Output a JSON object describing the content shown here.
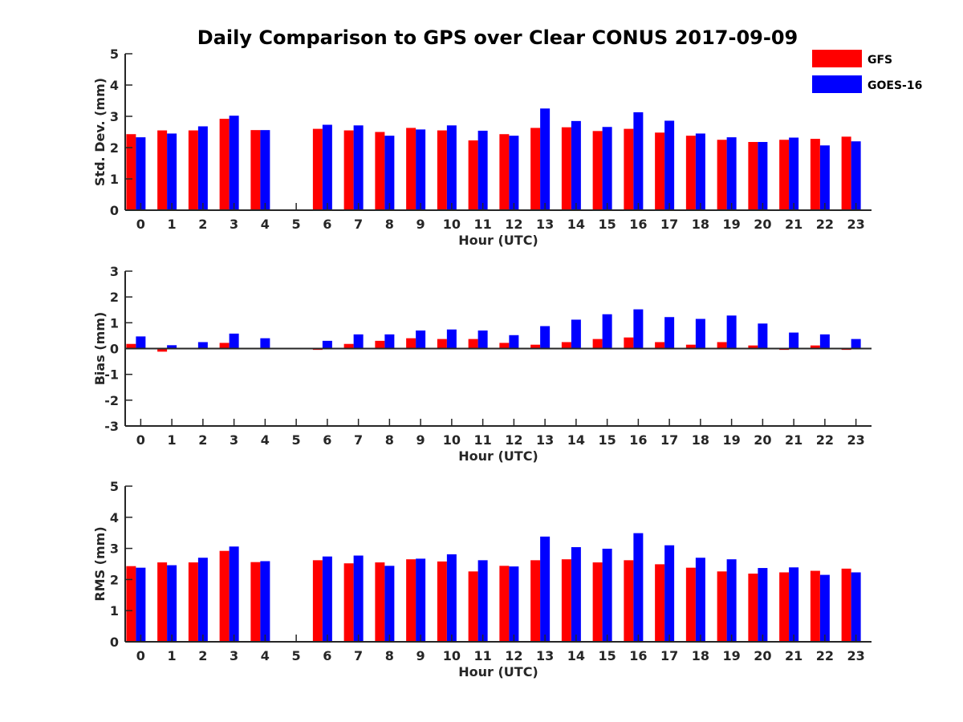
{
  "chart_data": {
    "type": "bar",
    "title": "Daily Comparison to GPS over Clear CONUS 2017-09-09",
    "legend": {
      "placement": "top-right",
      "entries": [
        {
          "name": "GFS",
          "color": "#ff0000"
        },
        {
          "name": "GOES-16",
          "color": "#0000ff"
        }
      ]
    },
    "categories": [
      "0",
      "1",
      "2",
      "3",
      "4",
      "5",
      "6",
      "7",
      "8",
      "9",
      "10",
      "11",
      "12",
      "13",
      "14",
      "15",
      "16",
      "17",
      "18",
      "19",
      "20",
      "21",
      "22",
      "23"
    ],
    "panels": [
      {
        "id": "std",
        "ylabel": "Std. Dev. (mm)",
        "xlabel": "Hour (UTC)",
        "ylim": [
          0,
          5
        ],
        "yticks": [
          "0",
          "1",
          "2",
          "3",
          "4",
          "5"
        ],
        "series": [
          {
            "name": "GFS",
            "color": "#ff0000",
            "values": [
              2.43,
              2.55,
              2.55,
              2.92,
              2.56,
              null,
              2.6,
              2.55,
              2.5,
              2.63,
              2.55,
              2.23,
              2.43,
              2.63,
              2.65,
              2.53,
              2.6,
              2.48,
              2.38,
              2.25,
              2.18,
              2.25,
              2.28,
              2.35
            ]
          },
          {
            "name": "GOES-16",
            "color": "#0000ff",
            "values": [
              2.33,
              2.45,
              2.68,
              3.02,
              2.56,
              null,
              2.73,
              2.71,
              2.38,
              2.58,
              2.71,
              2.54,
              2.38,
              3.25,
              2.85,
              2.66,
              3.13,
              2.86,
              2.45,
              2.33,
              2.18,
              2.32,
              2.07,
              2.2
            ]
          }
        ]
      },
      {
        "id": "bias",
        "ylabel": "Bias (mm)",
        "xlabel": "Hour (UTC)",
        "ylim": [
          -3,
          3
        ],
        "yticks": [
          "-3",
          "-2",
          "-1",
          "0",
          "1",
          "2",
          "3"
        ],
        "series": [
          {
            "name": "GFS",
            "color": "#ff0000",
            "values": [
              0.18,
              -0.12,
              0.02,
              0.22,
              0.03,
              null,
              -0.05,
              0.18,
              0.3,
              0.4,
              0.37,
              0.37,
              0.22,
              0.15,
              0.25,
              0.37,
              0.43,
              0.25,
              0.15,
              0.25,
              0.12,
              -0.05,
              0.12,
              -0.05
            ]
          },
          {
            "name": "GOES-16",
            "color": "#0000ff",
            "values": [
              0.47,
              0.13,
              0.25,
              0.58,
              0.4,
              null,
              0.3,
              0.55,
              0.55,
              0.7,
              0.74,
              0.7,
              0.52,
              0.87,
              1.12,
              1.33,
              1.52,
              1.22,
              1.15,
              1.28,
              0.97,
              0.62,
              0.55,
              0.37
            ]
          }
        ]
      },
      {
        "id": "rms",
        "ylabel": "RMS (mm)",
        "xlabel": "Hour (UTC)",
        "ylim": [
          0,
          5
        ],
        "yticks": [
          "0",
          "1",
          "2",
          "3",
          "4",
          "5"
        ],
        "series": [
          {
            "name": "GFS",
            "color": "#ff0000",
            "values": [
              2.43,
              2.55,
              2.55,
              2.92,
              2.56,
              null,
              2.62,
              2.52,
              2.55,
              2.65,
              2.58,
              2.26,
              2.44,
              2.62,
              2.65,
              2.55,
              2.62,
              2.49,
              2.38,
              2.26,
              2.19,
              2.23,
              2.28,
              2.35
            ]
          },
          {
            "name": "GOES-16",
            "color": "#0000ff",
            "values": [
              2.38,
              2.46,
              2.7,
              3.06,
              2.59,
              null,
              2.74,
              2.77,
              2.44,
              2.67,
              2.81,
              2.62,
              2.42,
              3.38,
              3.04,
              2.99,
              3.49,
              3.1,
              2.7,
              2.65,
              2.37,
              2.39,
              2.15,
              2.23
            ]
          }
        ]
      }
    ]
  }
}
